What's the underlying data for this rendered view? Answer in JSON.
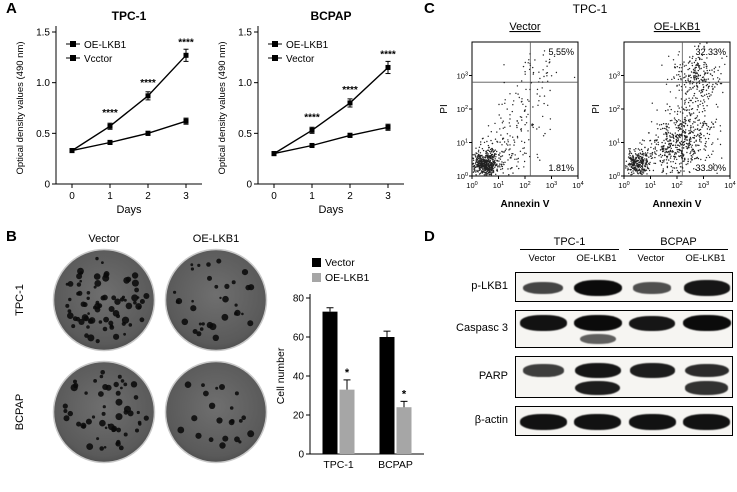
{
  "panels": {
    "A": {
      "label": "A"
    },
    "B": {
      "label": "B",
      "col_headers": [
        "Vector",
        "OE-LKB1"
      ],
      "row_headers": [
        "TPC-1",
        "BCPAP"
      ],
      "dishes": [
        {
          "cell_line": "TPC-1",
          "condition": "Vector",
          "colonies": 78
        },
        {
          "cell_line": "TPC-1",
          "condition": "OE-LKB1",
          "colonies": 34
        },
        {
          "cell_line": "BCPAP",
          "condition": "Vector",
          "colonies": 56
        },
        {
          "cell_line": "BCPAP",
          "condition": "OE-LKB1",
          "colonies": 22
        }
      ]
    },
    "C": {
      "label": "C",
      "title": "TPC-1"
    },
    "D": {
      "label": "D",
      "groups": [
        "TPC-1",
        "BCPAP"
      ],
      "lanes": [
        "Vector",
        "OE-LKB1",
        "Vector",
        "OE-LKB1"
      ],
      "rows": [
        {
          "name": "p-LKB1",
          "bands": [
            0.55,
            1.0,
            0.45,
            0.9
          ]
        },
        {
          "name": "Caspasc 3",
          "bands": [
            0.95,
            1.0,
            0.9,
            1.0
          ],
          "bands2": [
            0,
            0.35,
            0,
            0
          ]
        },
        {
          "name": "PARP",
          "bands": [
            0.6,
            0.9,
            0.85,
            0.75
          ],
          "bands2": [
            0,
            0.85,
            0,
            0.7
          ]
        },
        {
          "name": "β-actin",
          "bands": [
            0.95,
            0.95,
            0.95,
            0.95
          ]
        }
      ]
    }
  },
  "chart_data": [
    {
      "id": "tpc1-growth-curve",
      "type": "line",
      "title": "TPC-1",
      "xlabel": "Days",
      "ylabel": "Optical density values (490 nm)",
      "x": [
        0,
        1,
        2,
        3
      ],
      "ylim": [
        0,
        1.5
      ],
      "yticks": [
        0,
        0.5,
        1.0,
        1.5
      ],
      "series": [
        {
          "name": "OE-LKB1",
          "marker": "square",
          "values": [
            0.33,
            0.41,
            0.5,
            0.62
          ],
          "errors": [
            0.01,
            0.02,
            0.02,
            0.03
          ]
        },
        {
          "name": "Vcctor",
          "marker": "square",
          "values": [
            0.33,
            0.57,
            0.87,
            1.27
          ],
          "errors": [
            0.01,
            0.03,
            0.04,
            0.06
          ]
        }
      ],
      "annotations": [
        {
          "x": 1,
          "text": "****"
        },
        {
          "x": 2,
          "text": "****"
        },
        {
          "x": 3,
          "text": "****"
        }
      ],
      "legend_position": "top-left",
      "grid": false
    },
    {
      "id": "bcpap-growth-curve",
      "type": "line",
      "title": "BCPAP",
      "xlabel": "Days",
      "ylabel": "Optical density values (490 nm)",
      "x": [
        0,
        1,
        2,
        3
      ],
      "ylim": [
        0,
        1.5
      ],
      "yticks": [
        0,
        0.5,
        1.0,
        1.5
      ],
      "series": [
        {
          "name": "OE-LKB1",
          "marker": "square",
          "values": [
            0.3,
            0.38,
            0.48,
            0.56
          ],
          "errors": [
            0.01,
            0.02,
            0.02,
            0.03
          ]
        },
        {
          "name": "Vector",
          "marker": "square",
          "values": [
            0.3,
            0.53,
            0.8,
            1.15
          ],
          "errors": [
            0.01,
            0.03,
            0.04,
            0.06
          ]
        }
      ],
      "annotations": [
        {
          "x": 1,
          "text": "****"
        },
        {
          "x": 2,
          "text": "****"
        },
        {
          "x": 3,
          "text": "****"
        }
      ],
      "legend_position": "top-left",
      "grid": false
    },
    {
      "id": "colony-cell-number",
      "type": "bar",
      "title": "",
      "xlabel": "",
      "ylabel": "Cell number",
      "categories": [
        "TPC-1",
        "BCPAP"
      ],
      "ylim": [
        0,
        80
      ],
      "yticks": [
        0,
        20,
        40,
        60,
        80
      ],
      "series": [
        {
          "name": "Vector",
          "color": "#000000",
          "values": [
            73,
            60
          ],
          "errors": [
            2,
            3
          ]
        },
        {
          "name": "OE-LKB1",
          "color": "#a6a6a6",
          "values": [
            33,
            24
          ],
          "errors": [
            5,
            3
          ]
        }
      ],
      "annotations": [
        {
          "category": "TPC-1",
          "series": "OE-LKB1",
          "text": "*"
        },
        {
          "category": "BCPAP",
          "series": "OE-LKB1",
          "text": "*"
        }
      ],
      "legend_position": "top-left",
      "grid": false
    },
    {
      "id": "flow-tpc1-vector",
      "type": "scatter",
      "title": "Vector",
      "xlabel": "Annexin V",
      "ylabel": "PI",
      "xticks": [
        "0",
        "1",
        "2",
        "3",
        "4"
      ],
      "yticks": [
        "0",
        "1",
        "2",
        "3"
      ],
      "quadrants": {
        "upper_right": "5.55%",
        "lower_right": "1.81%"
      },
      "gate": {
        "x": 0.55,
        "y": 0.7
      },
      "populations": [
        {
          "x": 0.13,
          "y": 0.09,
          "sx": 0.055,
          "sy": 0.05,
          "n": 500
        },
        {
          "x": 0.3,
          "y": 0.2,
          "sx": 0.11,
          "sy": 0.09,
          "n": 130
        },
        {
          "x": 0.5,
          "y": 0.5,
          "sx": 0.14,
          "sy": 0.13,
          "n": 70
        },
        {
          "x": 0.63,
          "y": 0.8,
          "sx": 0.1,
          "sy": 0.07,
          "n": 40
        }
      ]
    },
    {
      "id": "flow-tpc1-oe-lkb1",
      "type": "scatter",
      "title": "OE-LKB1",
      "xlabel": "Annexin V",
      "ylabel": "PI",
      "xticks": [
        "0",
        "1",
        "2",
        "3",
        "4"
      ],
      "yticks": [
        "0",
        "1",
        "2",
        "3"
      ],
      "quadrants": {
        "upper_right": "32.33%",
        "lower_right": "33.90%"
      },
      "gate": {
        "x": 0.55,
        "y": 0.7
      },
      "populations": [
        {
          "x": 0.13,
          "y": 0.09,
          "sx": 0.055,
          "sy": 0.05,
          "n": 300
        },
        {
          "x": 0.58,
          "y": 0.3,
          "sx": 0.13,
          "sy": 0.14,
          "n": 450
        },
        {
          "x": 0.68,
          "y": 0.75,
          "sx": 0.12,
          "sy": 0.1,
          "n": 260
        },
        {
          "x": 0.38,
          "y": 0.18,
          "sx": 0.11,
          "sy": 0.08,
          "n": 140
        }
      ]
    }
  ]
}
